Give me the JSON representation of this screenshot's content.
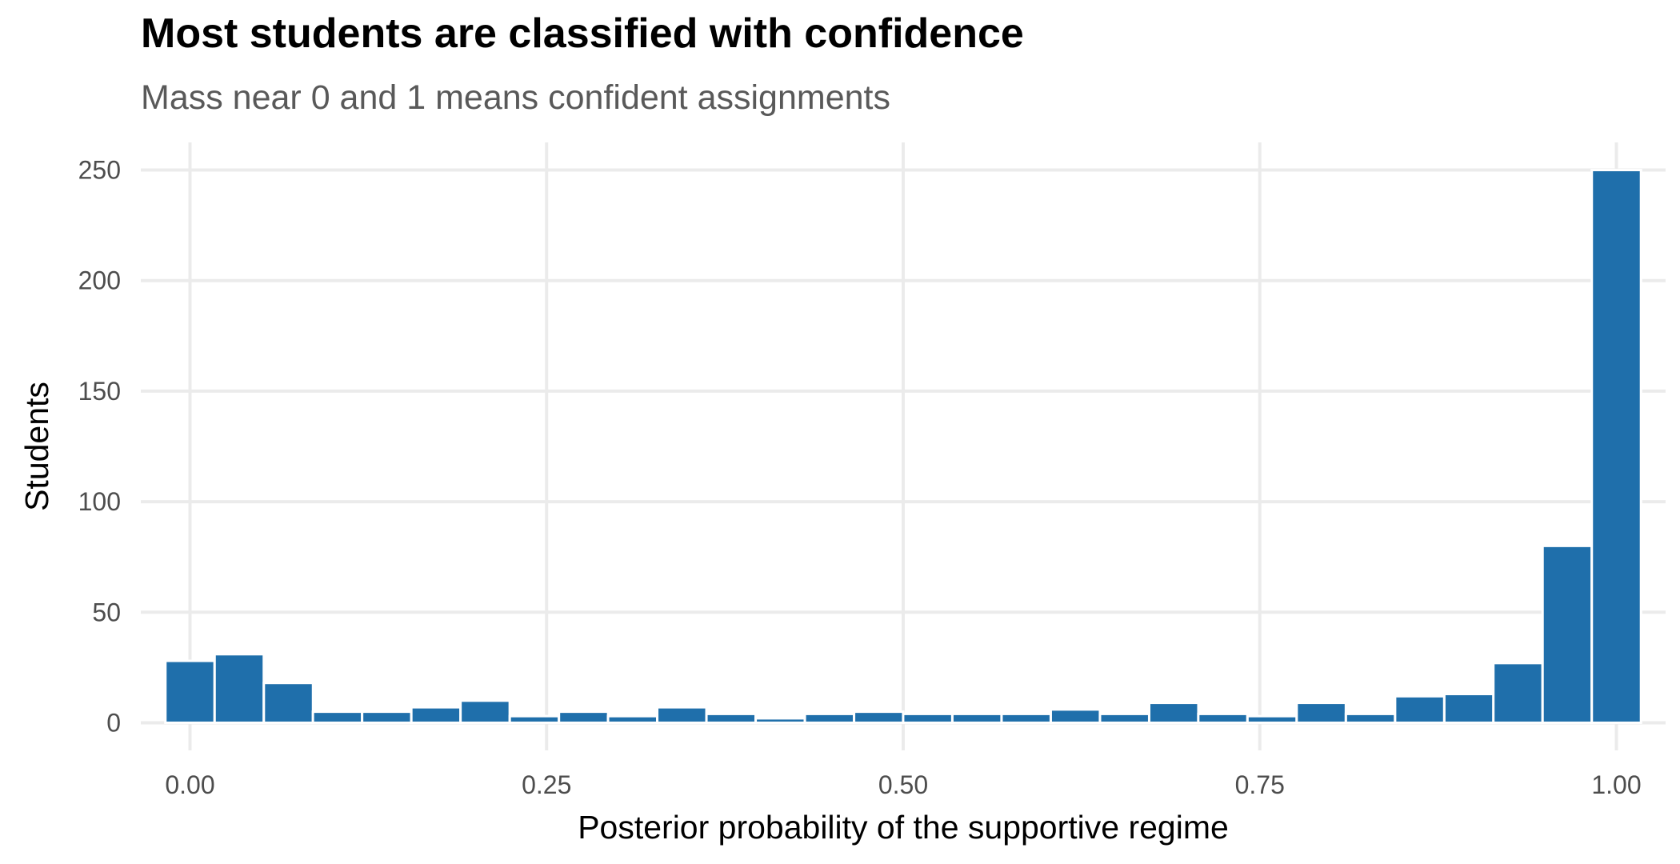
{
  "chart_data": {
    "type": "bar",
    "title": "Most students are classified with confidence",
    "subtitle": "Mass near 0 and 1 means confident assignments",
    "xlabel": "Posterior probability of the supportive regime",
    "ylabel": "Students",
    "xlim": [
      -0.0345,
      1.0345
    ],
    "ylim": [
      -12.5,
      262.5
    ],
    "x_ticks": [
      0.0,
      0.25,
      0.5,
      0.75,
      1.0
    ],
    "x_tick_labels": [
      "0.00",
      "0.25",
      "0.50",
      "0.75",
      "1.00"
    ],
    "y_ticks": [
      0,
      50,
      100,
      150,
      200,
      250
    ],
    "y_tick_labels": [
      "0",
      "50",
      "100",
      "150",
      "200",
      "250"
    ],
    "bin_width": 0.03448,
    "bin_centers": [
      0.0,
      0.0345,
      0.069,
      0.1034,
      0.1379,
      0.1724,
      0.2069,
      0.2414,
      0.2759,
      0.3103,
      0.3448,
      0.3793,
      0.4138,
      0.4483,
      0.4828,
      0.5172,
      0.5517,
      0.5862,
      0.6207,
      0.6552,
      0.6897,
      0.7241,
      0.7586,
      0.7931,
      0.8276,
      0.8621,
      0.8966,
      0.931,
      0.9655,
      1.0
    ],
    "values": [
      28,
      31,
      18,
      5,
      5,
      7,
      10,
      3,
      5,
      3,
      7,
      4,
      2,
      4,
      5,
      4,
      4,
      4,
      6,
      4,
      9,
      4,
      3,
      9,
      4,
      12,
      13,
      27,
      80,
      250
    ],
    "grid": true,
    "bar_color": "#1f6fab",
    "grid_color": "#ebebeb"
  }
}
